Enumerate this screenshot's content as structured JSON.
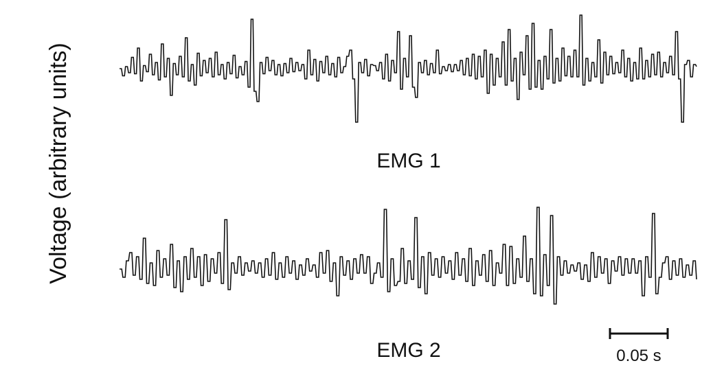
{
  "chart_data": {
    "type": "line",
    "ylabel": "Voltage (arbitrary units)",
    "series": [
      {
        "name": "EMG 1",
        "values": [
          0.0,
          -0.35,
          0.1,
          -0.2,
          0.55,
          -0.25,
          1.0,
          -0.6,
          0.15,
          -0.15,
          0.7,
          -0.3,
          0.3,
          -0.55,
          1.2,
          -0.4,
          0.5,
          -1.3,
          0.25,
          -0.3,
          0.6,
          -0.4,
          1.5,
          -0.6,
          0.2,
          -0.8,
          0.75,
          -0.35,
          0.4,
          -0.2,
          0.5,
          -0.4,
          0.8,
          -0.3,
          0.2,
          -0.5,
          0.3,
          -0.25,
          0.65,
          -0.45,
          0.1,
          -0.3,
          0.35,
          -0.9,
          2.4,
          -1.1,
          -1.6,
          0.3,
          -0.25,
          0.55,
          -0.1,
          0.4,
          -0.3,
          0.2,
          -0.35,
          0.25,
          -0.2,
          0.5,
          -0.15,
          0.3,
          -0.1,
          0.2,
          -0.5,
          0.9,
          -0.3,
          0.45,
          -0.6,
          0.35,
          -0.2,
          0.6,
          -0.3,
          0.25,
          -0.4,
          0.55,
          -0.2,
          0.1,
          0.6,
          0.9,
          -0.5,
          -2.6,
          0.3,
          -0.2,
          0.45,
          -0.35,
          0.2,
          0.15,
          -0.1,
          0.3,
          -0.5,
          0.7,
          -0.6,
          0.4,
          -0.2,
          1.8,
          -1.0,
          0.5,
          -0.4,
          1.6,
          -0.9,
          -1.4,
          0.3,
          -0.2,
          0.4,
          -0.3,
          0.25,
          -0.2,
          0.9,
          -0.25,
          0.1,
          -0.1,
          0.2,
          -0.15,
          0.2,
          -0.1,
          0.4,
          -0.3,
          0.5,
          -0.35,
          0.7,
          -0.5,
          0.6,
          -0.4,
          0.9,
          -1.2,
          0.7,
          -0.8,
          0.5,
          -0.4,
          1.3,
          -0.8,
          1.9,
          -0.6,
          0.5,
          -1.5,
          0.8,
          -0.3,
          1.6,
          -1.0,
          2.2,
          -0.9,
          0.4,
          -1.0,
          0.6,
          -0.5,
          1.9,
          -0.7,
          0.5,
          -0.6,
          1.0,
          -0.35,
          0.6,
          -0.4,
          0.9,
          -0.4,
          2.6,
          -0.8,
          0.5,
          -0.6,
          0.3,
          -0.4,
          1.4,
          -0.7,
          0.8,
          -0.3,
          0.6,
          -0.25,
          0.3,
          -0.2,
          0.9,
          -0.4,
          0.5,
          -0.6,
          0.3,
          -0.5,
          1.0,
          -0.5,
          0.4,
          -0.4,
          0.7,
          -0.3,
          0.8,
          -0.4,
          0.3,
          -0.2,
          0.6,
          -0.3,
          1.8,
          -0.5,
          -2.6,
          0.2,
          0.4,
          -0.4,
          0.2,
          0.1
        ]
      },
      {
        "name": "EMG 2",
        "values": [
          0.0,
          -0.4,
          0.4,
          0.8,
          -0.3,
          0.6,
          -0.5,
          1.5,
          -0.7,
          0.3,
          -0.8,
          0.9,
          -0.4,
          0.5,
          -0.3,
          1.2,
          -0.9,
          0.4,
          -1.1,
          0.6,
          -0.5,
          1.0,
          -0.4,
          0.6,
          -0.8,
          0.7,
          -0.6,
          0.5,
          -0.2,
          0.8,
          -0.7,
          2.4,
          -1.0,
          0.3,
          -0.2,
          0.6,
          -0.3,
          0.3,
          -0.1,
          0.4,
          -0.2,
          0.3,
          -0.4,
          0.5,
          -0.3,
          0.8,
          -0.5,
          0.3,
          -0.4,
          0.6,
          -0.2,
          0.4,
          -0.5,
          0.2,
          -0.3,
          0.5,
          -0.1,
          0.2,
          -0.4,
          0.8,
          -0.2,
          0.9,
          -0.6,
          0.3,
          -1.3,
          0.6,
          -0.3,
          0.4,
          -0.5,
          0.5,
          -0.2,
          0.7,
          -0.2,
          0.6,
          -0.7,
          -0.2,
          0.3,
          -0.4,
          2.9,
          -1.1,
          0.5,
          -0.8,
          -0.6,
          1.0,
          -0.7,
          0.4,
          -0.5,
          2.5,
          -0.9,
          0.6,
          -1.2,
          0.8,
          -0.3,
          0.5,
          -0.4,
          0.6,
          -0.2,
          0.4,
          -0.5,
          0.8,
          -0.3,
          0.5,
          -0.6,
          1.0,
          -0.8,
          0.4,
          -0.3,
          0.7,
          -0.6,
          0.9,
          -0.8,
          0.3,
          -0.2,
          1.2,
          -0.8,
          1.1,
          -0.7,
          0.5,
          -0.4,
          1.6,
          -0.6,
          0.5,
          -1.2,
          3.0,
          -1.3,
          0.7,
          -0.8,
          2.6,
          -1.7,
          0.6,
          -0.3,
          0.4,
          -0.2,
          0.2,
          -0.1,
          0.3,
          -0.5,
          0.2,
          -0.6,
          0.8,
          -0.4,
          0.6,
          -0.2,
          0.5,
          -0.7,
          0.4,
          -0.1,
          0.6,
          -0.3,
          0.5,
          -0.2,
          0.5,
          -0.2,
          0.4,
          -1.3,
          0.6,
          -0.4,
          2.7,
          -1.2,
          -0.4,
          0.3,
          0.6,
          -0.5,
          0.4,
          -0.3,
          0.5,
          -0.4,
          0.2,
          -0.3,
          0.4,
          -0.5
        ]
      }
    ],
    "scale_bar": {
      "label": "0.05 s",
      "value": 0.05,
      "unit": "s"
    },
    "grid": false,
    "legend": "none"
  }
}
